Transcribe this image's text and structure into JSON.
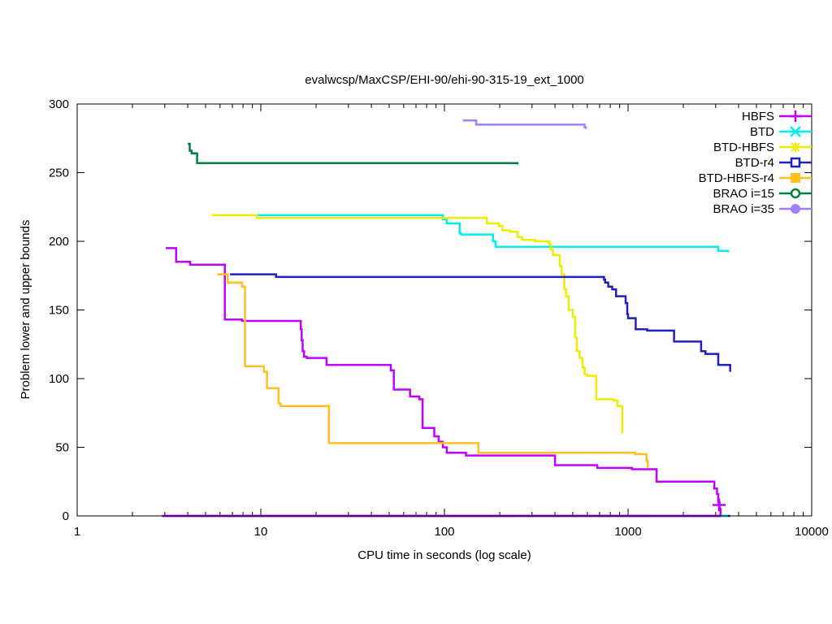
{
  "chart_data": {
    "type": "line",
    "title": "evalwcsp/MaxCSP/EHI-90/ehi-90-315-19_ext_1000",
    "xlabel": "CPU time in seconds (log scale)",
    "ylabel": "Problem lower and upper bounds",
    "xscale": "log",
    "xlim": [
      1,
      10000
    ],
    "ylim": [
      0,
      300
    ],
    "xticks": [
      1,
      10,
      100,
      1000,
      10000
    ],
    "xtick_labels": [
      "1",
      "10",
      "100",
      "1000",
      "10000"
    ],
    "yticks": [
      0,
      50,
      100,
      150,
      200,
      250,
      300
    ],
    "ytick_labels": [
      "0",
      "50",
      "100",
      "150",
      "200",
      "250",
      "300"
    ],
    "grid": false,
    "legend_position": "top-right",
    "series": [
      {
        "name": "HBFS",
        "color": "#c000ff",
        "marker": "plus",
        "upper": [
          [
            3.04,
            195
          ],
          [
            3.46,
            185
          ],
          [
            4.12,
            183
          ],
          [
            6.37,
            143
          ],
          [
            7.9,
            142
          ],
          [
            16.5,
            136
          ],
          [
            16.7,
            128
          ],
          [
            16.9,
            120
          ],
          [
            17.2,
            116
          ],
          [
            17.8,
            115
          ],
          [
            22.8,
            110
          ],
          [
            51,
            106
          ],
          [
            53,
            92
          ],
          [
            65,
            87
          ],
          [
            73,
            85
          ],
          [
            76,
            64
          ],
          [
            88,
            58
          ],
          [
            93,
            54
          ],
          [
            98,
            50
          ],
          [
            103,
            46
          ],
          [
            131,
            44
          ],
          [
            400,
            37
          ],
          [
            680,
            35
          ],
          [
            1050,
            34
          ],
          [
            1430,
            25
          ],
          [
            2950,
            20
          ],
          [
            3050,
            16
          ],
          [
            3100,
            10
          ],
          [
            3150,
            5
          ],
          [
            3190,
            0
          ]
        ],
        "lower": [
          [
            2.9,
            0
          ],
          [
            3190,
            0
          ]
        ],
        "final_point": [
          3130,
          8
        ]
      },
      {
        "name": "BTD",
        "color": "#00eeee",
        "marker": "cross",
        "upper": [
          [
            9.5,
            219
          ],
          [
            98,
            216
          ],
          [
            103,
            213
          ],
          [
            121,
            206
          ],
          [
            123,
            205
          ],
          [
            184,
            200
          ],
          [
            190,
            196
          ],
          [
            3100,
            193
          ],
          [
            3500,
            192
          ]
        ],
        "lower": [
          [
            9.5,
            0
          ],
          [
            3500,
            0
          ]
        ]
      },
      {
        "name": "BTD-HBFS",
        "color": "#eeee00",
        "marker": "star",
        "upper": [
          [
            5.4,
            219
          ],
          [
            9.5,
            217
          ],
          [
            170,
            213
          ],
          [
            198,
            211
          ],
          [
            207,
            208
          ],
          [
            227,
            207
          ],
          [
            250,
            203
          ],
          [
            265,
            201
          ],
          [
            312,
            200
          ],
          [
            372,
            198
          ],
          [
            380,
            194
          ],
          [
            390,
            190
          ],
          [
            425,
            182
          ],
          [
            435,
            176
          ],
          [
            450,
            165
          ],
          [
            460,
            160
          ],
          [
            475,
            150
          ],
          [
            500,
            145
          ],
          [
            515,
            130
          ],
          [
            525,
            120
          ],
          [
            545,
            115
          ],
          [
            565,
            108
          ],
          [
            580,
            103
          ],
          [
            600,
            102
          ],
          [
            670,
            85
          ],
          [
            835,
            84
          ],
          [
            875,
            80
          ],
          [
            930,
            60
          ]
        ],
        "lower": [
          [
            5.4,
            0
          ],
          [
            930,
            0
          ]
        ]
      },
      {
        "name": "BTD-r4",
        "color": "#2020c0",
        "marker": "open-square",
        "upper": [
          [
            6.8,
            176
          ],
          [
            12.1,
            174
          ],
          [
            740,
            172
          ],
          [
            750,
            170
          ],
          [
            780,
            167
          ],
          [
            820,
            165
          ],
          [
            860,
            160
          ],
          [
            970,
            155
          ],
          [
            990,
            147
          ],
          [
            1000,
            144
          ],
          [
            1100,
            136
          ],
          [
            1270,
            135
          ],
          [
            1780,
            127
          ],
          [
            2500,
            120
          ],
          [
            2640,
            118
          ],
          [
            3100,
            110
          ],
          [
            3600,
            105
          ]
        ],
        "lower": [
          [
            6.8,
            0
          ],
          [
            3600,
            0
          ]
        ]
      },
      {
        "name": "BTD-HBFS-r4",
        "color": "#ffc020",
        "marker": "filled-square",
        "upper": [
          [
            5.8,
            176
          ],
          [
            6.6,
            170
          ],
          [
            7.9,
            167
          ],
          [
            8.2,
            109
          ],
          [
            10.4,
            105
          ],
          [
            10.8,
            93
          ],
          [
            12.5,
            82
          ],
          [
            12.8,
            80
          ],
          [
            23.5,
            53
          ],
          [
            153,
            46
          ],
          [
            1090,
            45
          ],
          [
            1260,
            40
          ],
          [
            1280,
            35
          ]
        ],
        "lower": [
          [
            5.8,
            0
          ],
          [
            1280,
            0
          ]
        ]
      },
      {
        "name": "BRAO i=15",
        "color": "#008040",
        "marker": "open-circle",
        "upper": [
          [
            4.0,
            271
          ],
          [
            4.1,
            266
          ],
          [
            4.2,
            264
          ],
          [
            4.5,
            257
          ],
          [
            250,
            256
          ]
        ],
        "lower": [
          [
            4.0,
            0
          ],
          [
            250,
            0
          ]
        ]
      },
      {
        "name": "BRAO i=35",
        "color": "#a080ff",
        "marker": "filled-circle",
        "upper": [
          [
            126,
            288
          ],
          [
            149,
            285
          ],
          [
            580,
            283
          ],
          [
            590,
            282
          ]
        ],
        "lower": []
      }
    ]
  }
}
